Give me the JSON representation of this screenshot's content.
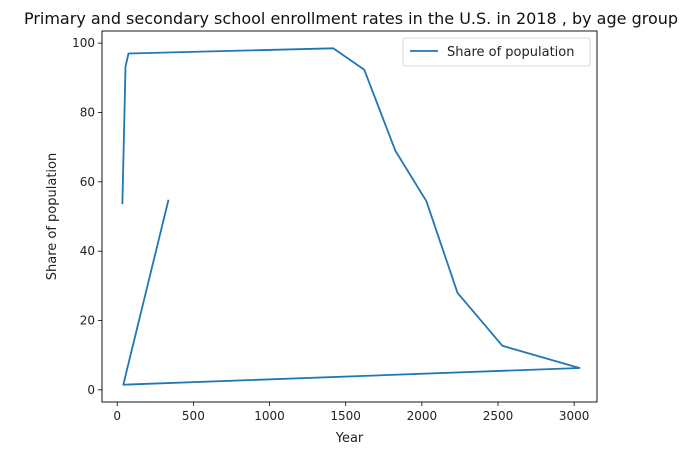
{
  "chart_data": {
    "type": "line",
    "title": "Primary and secondary school enrollment rates in the U.S. in 2018 , by age group",
    "xlabel": "Year",
    "ylabel": "Share of population",
    "xlim": [
      -100,
      3150
    ],
    "ylim": [
      -3.5,
      103.5
    ],
    "xticks": [
      0,
      500,
      1000,
      1500,
      2000,
      2500,
      3000
    ],
    "yticks": [
      0,
      20,
      40,
      60,
      80,
      100
    ],
    "grid": false,
    "legend": "top-right",
    "series": [
      {
        "name": "Share of population",
        "color": "#1f77b4",
        "x": [
          34,
          54,
          74,
          1418,
          1622,
          1826,
          2030,
          2234,
          2529,
          3035,
          40,
          335
        ],
        "y": [
          53.8,
          93.2,
          97.0,
          98.5,
          92.3,
          69.0,
          54.4,
          28.0,
          12.7,
          6.3,
          1.5,
          54.6
        ]
      }
    ]
  }
}
